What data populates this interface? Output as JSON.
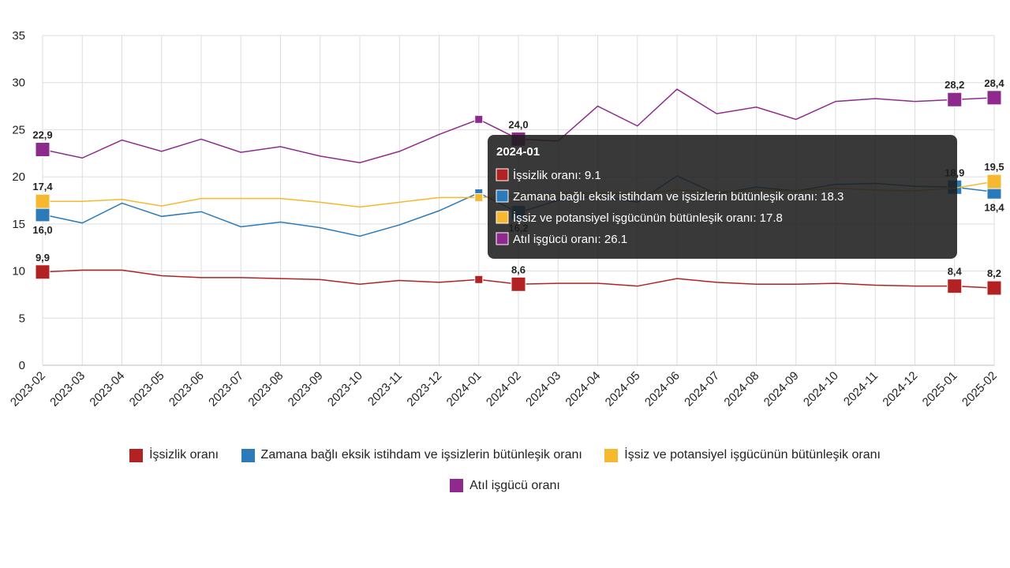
{
  "chart_data": {
    "type": "line",
    "x": [
      "2023-02",
      "2023-03",
      "2023-04",
      "2023-05",
      "2023-06",
      "2023-07",
      "2023-08",
      "2023-09",
      "2023-10",
      "2023-11",
      "2023-12",
      "2024-01",
      "2024-02",
      "2024-03",
      "2024-04",
      "2024-05",
      "2024-06",
      "2024-07",
      "2024-08",
      "2024-09",
      "2024-10",
      "2024-11",
      "2024-12",
      "2025-01",
      "2025-02"
    ],
    "ylim": [
      0,
      35
    ],
    "yticks": [
      0,
      5,
      10,
      15,
      20,
      25,
      30,
      35
    ],
    "grid": true,
    "legend_position": "bottom",
    "series": [
      {
        "name": "İşsizlik oranı",
        "color": "#b22222",
        "values": [
          9.9,
          10.1,
          10.1,
          9.5,
          9.3,
          9.3,
          9.2,
          9.1,
          8.6,
          9.0,
          8.8,
          9.1,
          8.6,
          8.7,
          8.7,
          8.4,
          9.2,
          8.8,
          8.6,
          8.6,
          8.7,
          8.5,
          8.4,
          8.4,
          8.2
        ],
        "labels": {
          "0": "9,9",
          "12": "8,6",
          "23": "8,4",
          "24": "8,2"
        }
      },
      {
        "name": "Zamana bağlı eksik istihdam ve işsizlerin bütünleşik oranı",
        "color": "#2b7bba",
        "values": [
          16.0,
          15.1,
          17.2,
          15.8,
          16.3,
          14.7,
          15.2,
          14.6,
          13.7,
          14.9,
          16.4,
          18.3,
          16.2,
          17.5,
          18.0,
          17.3,
          20.1,
          18.2,
          18.9,
          18.5,
          19.2,
          19.3,
          19.0,
          18.9,
          18.4
        ],
        "labels": {
          "0": "16,0",
          "12": "16,2",
          "23": "18,9",
          "24": "18,4"
        }
      },
      {
        "name": "İşsiz ve potansiyel işgücünün bütünleşik oranı",
        "color": "#f5b82e",
        "values": [
          17.4,
          17.4,
          17.6,
          16.9,
          17.7,
          17.7,
          17.7,
          17.3,
          16.8,
          17.3,
          17.8,
          17.8,
          17.9,
          18.2,
          18.3,
          18.2,
          18.6,
          18.4,
          18.6,
          18.5,
          18.8,
          18.6,
          18.5,
          18.8,
          19.5
        ],
        "labels": {
          "0": "17,4",
          "24": "19,5"
        }
      },
      {
        "name": "Atıl işgücü oranı",
        "color": "#8e2a8e",
        "values": [
          22.9,
          22.0,
          23.9,
          22.7,
          24.0,
          22.6,
          23.2,
          22.2,
          21.5,
          22.7,
          24.5,
          26.1,
          24.0,
          23.8,
          27.5,
          25.4,
          29.3,
          26.7,
          27.4,
          26.1,
          28.0,
          28.3,
          28.0,
          28.2,
          28.4
        ],
        "labels": {
          "0": "22,9",
          "12": "24,0",
          "23": "28,2",
          "24": "28,4"
        }
      }
    ]
  },
  "tooltip": {
    "title": "2024-01",
    "rows": [
      {
        "text": "İşsizlik oranı: 9.1",
        "color": "#b22222"
      },
      {
        "text": "Zamana bağlı eksik istihdam ve işsizlerin bütünleşik oranı: 18.3",
        "color": "#2b7bba"
      },
      {
        "text": "İşsiz ve potansiyel işgücünün bütünleşik oranı: 17.8",
        "color": "#f5b82e"
      },
      {
        "text": "Atıl işgücü oranı: 26.1",
        "color": "#8e2a8e"
      }
    ]
  },
  "legend": [
    {
      "label": "İşsizlik oranı",
      "color": "#b22222"
    },
    {
      "label": "Zamana bağlı eksik istihdam ve işsizlerin bütünleşik oranı",
      "color": "#2b7bba"
    },
    {
      "label": "İşsiz ve potansiyel işgücünün bütünleşik oranı",
      "color": "#f5b82e"
    },
    {
      "label": "Atıl işgücü oranı",
      "color": "#8e2a8e"
    }
  ]
}
